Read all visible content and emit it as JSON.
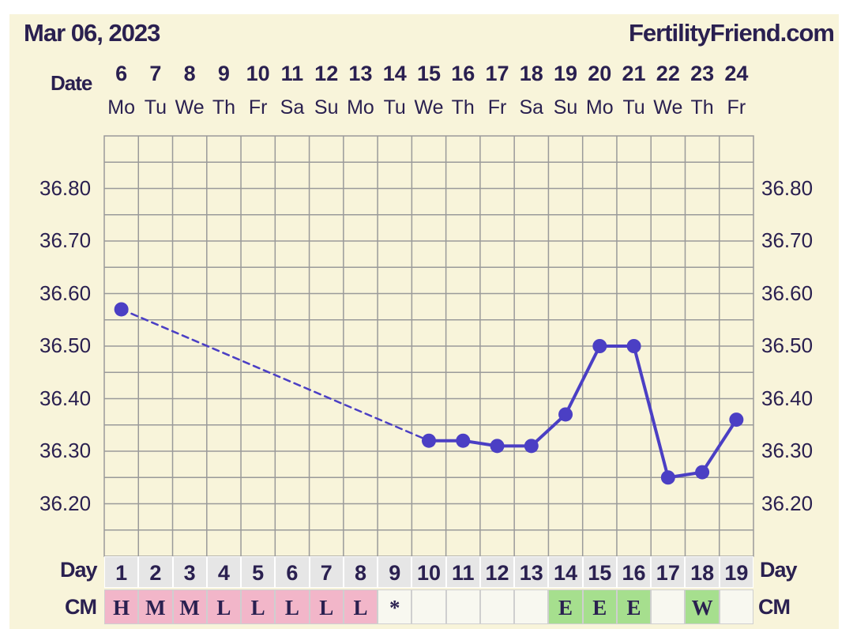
{
  "header": {
    "date": "Mar 06, 2023",
    "site": "FertilityFriend.com"
  },
  "labels": {
    "date_row": "Date",
    "day_row": "Day",
    "cm_row": "CM"
  },
  "colors": {
    "line": "#4b3fc4",
    "background": "#f8f4da",
    "grid": "#9a9a9a",
    "text": "#2a2050",
    "cm_pink": "#f2b6c9",
    "cm_green": "#a6df8e",
    "cm_white": "#f8f8f0"
  },
  "chart_data": {
    "type": "line",
    "dates": [
      "6",
      "7",
      "8",
      "9",
      "10",
      "11",
      "12",
      "13",
      "14",
      "15",
      "16",
      "17",
      "18",
      "19",
      "20",
      "21",
      "22",
      "23",
      "24"
    ],
    "weekdays": [
      "Mo",
      "Tu",
      "We",
      "Th",
      "Fr",
      "Sa",
      "Su",
      "Mo",
      "Tu",
      "We",
      "Th",
      "Fr",
      "Sa",
      "Su",
      "Mo",
      "Tu",
      "We",
      "Th",
      "Fr"
    ],
    "cycle_days": [
      "1",
      "2",
      "3",
      "4",
      "5",
      "6",
      "7",
      "8",
      "9",
      "10",
      "11",
      "12",
      "13",
      "14",
      "15",
      "16",
      "17",
      "18",
      "19"
    ],
    "cm": [
      "H",
      "M",
      "M",
      "L",
      "L",
      "L",
      "L",
      "L",
      "*",
      "",
      "",
      "",
      "",
      "E",
      "E",
      "E",
      "",
      "W",
      ""
    ],
    "cm_colors": [
      "pink",
      "pink",
      "pink",
      "pink",
      "pink",
      "pink",
      "pink",
      "pink",
      "white",
      "white",
      "white",
      "white",
      "white",
      "green",
      "green",
      "green",
      "white",
      "green",
      "white"
    ],
    "temperatures": [
      36.57,
      null,
      null,
      null,
      null,
      null,
      null,
      null,
      null,
      36.32,
      36.32,
      36.31,
      36.31,
      36.37,
      36.5,
      36.5,
      36.25,
      36.26,
      36.36
    ],
    "y_ticks": [
      "36.80",
      "36.70",
      "36.60",
      "36.50",
      "36.40",
      "36.30",
      "36.20"
    ],
    "ylim": [
      36.1,
      36.9
    ],
    "grid": true
  }
}
